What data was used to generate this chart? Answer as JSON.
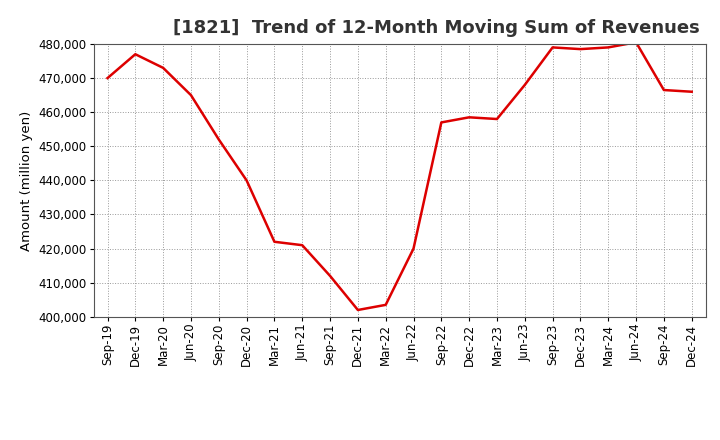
{
  "title": "[1821]  Trend of 12-Month Moving Sum of Revenues",
  "ylabel": "Amount (million yen)",
  "line_color": "#dd0000",
  "background_color": "#ffffff",
  "plot_bg_color": "#ffffff",
  "grid_color": "#999999",
  "title_color": "#333333",
  "x_labels": [
    "Sep-19",
    "Dec-19",
    "Mar-20",
    "Jun-20",
    "Sep-20",
    "Dec-20",
    "Mar-21",
    "Jun-21",
    "Sep-21",
    "Dec-21",
    "Mar-22",
    "Jun-22",
    "Sep-22",
    "Dec-22",
    "Mar-23",
    "Jun-23",
    "Sep-23",
    "Dec-23",
    "Mar-24",
    "Jun-24",
    "Sep-24",
    "Dec-24"
  ],
  "y_values": [
    470000,
    477000,
    473000,
    465000,
    452000,
    440000,
    422000,
    421000,
    412000,
    402000,
    403500,
    420000,
    457000,
    458500,
    458000,
    468000,
    479000,
    478500,
    479000,
    480500,
    466500,
    466000
  ],
  "ylim": [
    400000,
    480000
  ],
  "ytick_step": 10000,
  "title_fontsize": 13,
  "tick_fontsize": 8.5,
  "ylabel_fontsize": 9.5,
  "linewidth": 1.8
}
